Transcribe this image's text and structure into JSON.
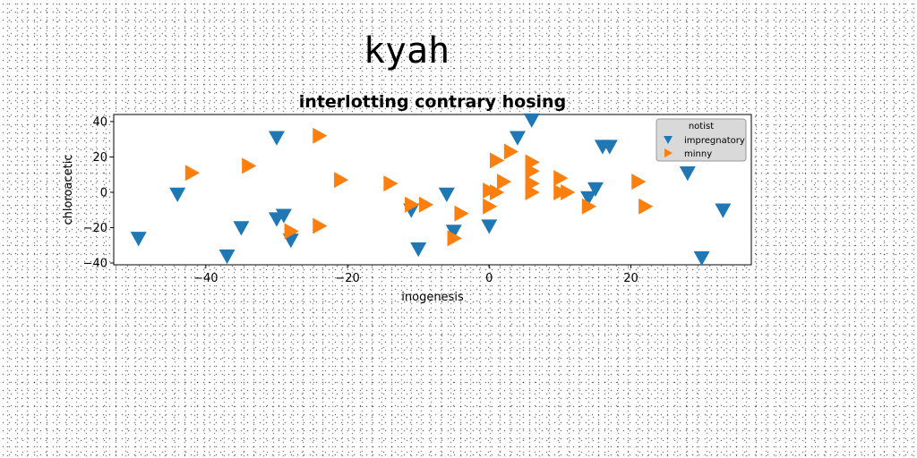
{
  "figure_title": "kyah",
  "chart_data": {
    "type": "scatter",
    "title": "interlotting contrary hosing",
    "xlabel": "inogenesis",
    "ylabel": "chloroacetic",
    "xlim": [
      -53,
      37
    ],
    "ylim": [
      -41,
      44
    ],
    "xticks": [
      -40,
      -20,
      0,
      20
    ],
    "yticks": [
      -40,
      -20,
      0,
      20,
      40
    ],
    "grid": false,
    "legend": {
      "title": "notist",
      "placement": "top-right"
    },
    "series": [
      {
        "name": "impregnatory",
        "color": "#1f77b4",
        "marker": "triangle-down",
        "points": [
          [
            -49.5,
            -26
          ],
          [
            -44,
            -1
          ],
          [
            -37,
            -36
          ],
          [
            -35,
            -20
          ],
          [
            -30,
            31
          ],
          [
            -30,
            -15
          ],
          [
            -29,
            -13
          ],
          [
            -28,
            -27
          ],
          [
            -11,
            -10
          ],
          [
            -10,
            -32
          ],
          [
            -6,
            -1
          ],
          [
            -5,
            -22
          ],
          [
            0,
            -19
          ],
          [
            4,
            31
          ],
          [
            6,
            41
          ],
          [
            14,
            -3
          ],
          [
            15,
            2
          ],
          [
            16,
            26
          ],
          [
            17,
            26
          ],
          [
            28,
            11
          ],
          [
            30,
            -37
          ],
          [
            33,
            -10
          ]
        ]
      },
      {
        "name": "minny",
        "color": "#ff7f0e",
        "marker": "triangle-right",
        "points": [
          [
            -42,
            11
          ],
          [
            -34,
            15
          ],
          [
            -28,
            -22
          ],
          [
            -24,
            -19
          ],
          [
            -24,
            32
          ],
          [
            -21,
            7
          ],
          [
            -14,
            5
          ],
          [
            -11,
            -7
          ],
          [
            -9,
            -7
          ],
          [
            -5,
            -26
          ],
          [
            -4,
            -12
          ],
          [
            0,
            -8
          ],
          [
            0,
            1
          ],
          [
            1,
            18
          ],
          [
            1,
            0
          ],
          [
            2,
            6
          ],
          [
            3,
            23
          ],
          [
            6,
            17
          ],
          [
            6,
            12
          ],
          [
            6,
            5
          ],
          [
            6,
            0
          ],
          [
            10,
            8
          ],
          [
            10,
            0
          ],
          [
            11,
            0
          ],
          [
            14,
            -8
          ],
          [
            21,
            6
          ],
          [
            22,
            -8
          ]
        ]
      }
    ]
  }
}
